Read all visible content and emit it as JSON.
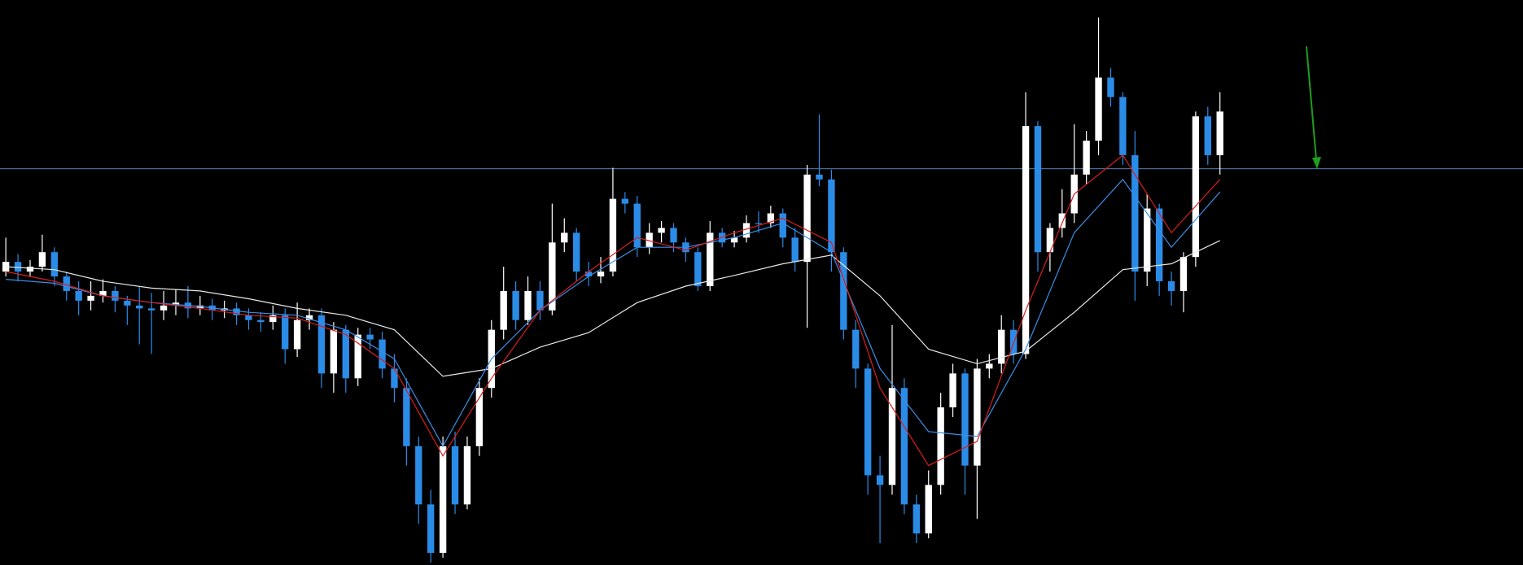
{
  "chart_data": {
    "type": "candlestick",
    "background": "#000000",
    "up_color": "#ffffff",
    "down_color": "#2b8ce8",
    "xlim": [
      -0.48,
      124.96
    ],
    "ylim": [
      0,
      580
    ],
    "open": [
      300,
      310,
      300,
      305,
      320,
      295,
      280,
      270,
      275,
      280,
      270,
      265,
      262,
      260,
      265,
      268,
      262,
      265,
      260,
      262,
      255,
      250,
      248,
      255,
      220,
      250,
      255,
      195,
      240,
      190,
      235,
      230,
      200,
      180,
      120,
      60,
      10,
      120,
      60,
      120,
      180,
      240,
      280,
      250,
      280,
      260,
      330,
      340,
      300,
      295,
      300,
      375,
      370,
      325,
      340,
      345,
      330,
      320,
      285,
      340,
      330,
      335,
      350,
      350,
      360,
      335,
      310,
      400,
      395,
      320,
      240,
      200,
      90,
      80,
      180,
      60,
      30,
      80,
      160,
      195,
      100,
      200,
      205,
      240,
      215,
      450,
      320,
      345,
      360,
      400,
      435,
      500,
      480,
      420,
      300,
      365,
      290,
      280,
      315,
      460,
      420
    ],
    "high": [
      335,
      318,
      312,
      338,
      325,
      300,
      290,
      290,
      292,
      285,
      275,
      285,
      278,
      280,
      282,
      285,
      275,
      272,
      270,
      268,
      262,
      258,
      265,
      262,
      268,
      262,
      262,
      248,
      245,
      242,
      242,
      238,
      215,
      190,
      130,
      75,
      130,
      135,
      130,
      190,
      250,
      305,
      290,
      295,
      290,
      370,
      355,
      345,
      310,
      315,
      407,
      382,
      378,
      350,
      352,
      350,
      335,
      325,
      352,
      345,
      342,
      358,
      362,
      368,
      365,
      345,
      410,
      462,
      405,
      325,
      250,
      205,
      110,
      245,
      190,
      70,
      95,
      175,
      205,
      200,
      210,
      215,
      255,
      250,
      485,
      455,
      350,
      385,
      452,
      445,
      562,
      510,
      485,
      445,
      380,
      370,
      300,
      320,
      465,
      470,
      485
    ],
    "low": [
      295,
      290,
      295,
      300,
      285,
      270,
      255,
      260,
      268,
      258,
      245,
      225,
      215,
      250,
      255,
      252,
      255,
      250,
      252,
      245,
      240,
      238,
      240,
      205,
      212,
      240,
      180,
      175,
      175,
      182,
      220,
      190,
      165,
      100,
      40,
      0,
      5,
      50,
      55,
      110,
      170,
      230,
      240,
      245,
      250,
      255,
      320,
      290,
      285,
      288,
      295,
      360,
      315,
      318,
      330,
      320,
      310,
      280,
      280,
      325,
      325,
      330,
      340,
      345,
      325,
      300,
      242,
      388,
      300,
      230,
      180,
      70,
      20,
      70,
      50,
      20,
      25,
      70,
      150,
      70,
      45,
      190,
      195,
      205,
      210,
      300,
      300,
      335,
      350,
      390,
      420,
      470,
      410,
      270,
      285,
      275,
      265,
      258,
      305,
      410,
      400
    ],
    "close": [
      310,
      300,
      305,
      320,
      295,
      280,
      270,
      275,
      280,
      270,
      265,
      262,
      260,
      265,
      268,
      262,
      265,
      260,
      262,
      255,
      250,
      248,
      255,
      220,
      250,
      255,
      195,
      240,
      190,
      235,
      230,
      200,
      180,
      120,
      60,
      10,
      120,
      60,
      120,
      180,
      240,
      280,
      250,
      280,
      260,
      330,
      340,
      300,
      295,
      300,
      375,
      370,
      325,
      340,
      345,
      330,
      320,
      285,
      340,
      330,
      335,
      350,
      350,
      360,
      335,
      310,
      400,
      395,
      320,
      240,
      200,
      90,
      80,
      180,
      60,
      30,
      80,
      160,
      195,
      100,
      200,
      205,
      240,
      215,
      450,
      320,
      345,
      360,
      400,
      435,
      500,
      480,
      420,
      300,
      365,
      290,
      280,
      315,
      460,
      420,
      465
    ],
    "hline": 406,
    "hline_color": "#5b86b8",
    "lines": [
      {
        "color": "#e8e8e8",
        "x": [
          0,
          4,
          8,
          12,
          16,
          20,
          24,
          28,
          32,
          36,
          40,
          44,
          48,
          52,
          56,
          60,
          64,
          68,
          72,
          76,
          80,
          84,
          88,
          92,
          96,
          100
        ],
        "values": [
          305,
          302,
          290,
          283,
          280,
          272,
          262,
          255,
          240,
          192,
          200,
          222,
          237,
          268,
          285,
          296,
          308,
          317,
          275,
          220,
          205,
          218,
          258,
          302,
          308,
          332
        ]
      },
      {
        "color": "#3a8ee6",
        "x": [
          0,
          4,
          8,
          12,
          16,
          20,
          24,
          28,
          32,
          36,
          40,
          44,
          48,
          52,
          56,
          60,
          64,
          68,
          72,
          76,
          80,
          84,
          88,
          92,
          96,
          100
        ],
        "values": [
          292,
          288,
          275,
          268,
          264,
          258,
          255,
          240,
          210,
          120,
          210,
          260,
          295,
          325,
          325,
          335,
          350,
          320,
          200,
          135,
          130,
          220,
          340,
          395,
          325,
          382
        ]
      },
      {
        "color": "#d81e1e",
        "x": [
          0,
          4,
          8,
          12,
          16,
          20,
          24,
          28,
          32,
          36,
          40,
          44,
          48,
          52,
          56,
          60,
          64,
          68,
          72,
          76,
          80,
          84,
          88,
          92,
          96,
          100
        ],
        "values": [
          300,
          290,
          275,
          268,
          262,
          255,
          252,
          235,
          200,
          110,
          190,
          260,
          300,
          335,
          322,
          340,
          355,
          330,
          180,
          100,
          125,
          260,
          380,
          420,
          340,
          395
        ]
      }
    ]
  }
}
